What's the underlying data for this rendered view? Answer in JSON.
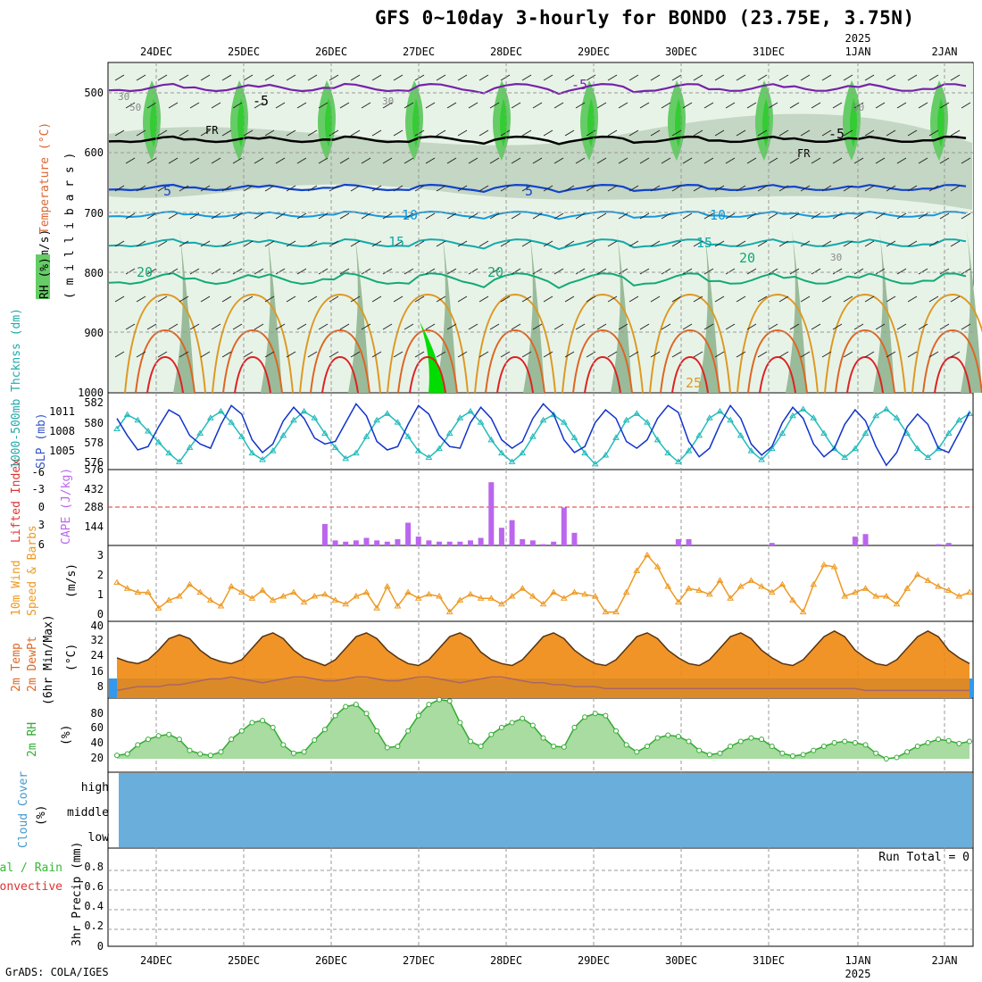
{
  "title": "GFS 0~10day 3-hourly for BONDO (23.75E, 3.75N)",
  "credit": "GrADS: COLA/IGES",
  "colors": {
    "rh": [
      "#e8f3e8",
      "#c4d6c4",
      "#99bb99",
      "#66cc66",
      "#33cc33",
      "#00dd00"
    ],
    "temp_line": [
      "#7722aa",
      "#000000",
      "#1144cc",
      "#1199dd",
      "#11aaaa",
      "#11aa77",
      "#dd9922",
      "#dd6622",
      "#dd2222"
    ],
    "slp": "#1133cc",
    "thickness": "#22bbbb",
    "cape": "#bb66ee",
    "lifted_index": "#dd3333",
    "wind": "#ee9922",
    "rh2m": "#33aa33",
    "cloud": "#6aaedb",
    "cloud_clear": "#f2f0f6"
  },
  "dates": {
    "top": [
      "24DEC",
      "25DEC",
      "26DEC",
      "27DEC",
      "28DEC",
      "29DEC",
      "30DEC",
      "31DEC",
      "1JAN",
      "2JAN"
    ],
    "year_label": "2025",
    "bottom": [
      "24DEC",
      "25DEC",
      "26DEC",
      "27DEC",
      "28DEC",
      "29DEC",
      "30DEC",
      "31DEC",
      "1JAN",
      "2JAN"
    ]
  },
  "panels": {
    "upper_air": {
      "ylabel_wind": "Wind (m/s)",
      "ylabel_temp": "Temperature (°C)",
      "ylabel_rh": "RH (%)",
      "ylabel_unit": "( m i l l i b a r s )",
      "levels": [
        "500",
        "600",
        "700",
        "800",
        "900",
        "1000"
      ],
      "contour_labels": [
        "-5",
        "FR",
        "5",
        "10",
        "15",
        "20",
        "25",
        "30",
        "50"
      ]
    },
    "thickness_slp": {
      "ylabel_left": "1000-500mb Thcknss (dm)",
      "ylabel_right": "SLP (mb)",
      "left_ticks": [
        "582",
        "580",
        "578",
        "576"
      ],
      "right_ticks": [
        "1011",
        "1008",
        "1005"
      ]
    },
    "cape_li": {
      "ylabel_left": "Lifted Index",
      "ylabel_right": "CAPE (J/kg)",
      "left_ticks": [
        "-6",
        "-3",
        "0",
        "3",
        "6"
      ],
      "right_ticks": [
        "576",
        "432",
        "288",
        "144"
      ]
    },
    "wind10m": {
      "ylabel_a": "10m Wind",
      "ylabel_b": "Speed & Barbs",
      "ylabel_c": "(m/s)",
      "ticks": [
        "3",
        "2",
        "1",
        "0"
      ]
    },
    "temp2m": {
      "ylabel_a": "2m Temp",
      "ylabel_b": "2m DewPt",
      "ylabel_c": "(6hr Min/Max)",
      "ylabel_d": "(°C)",
      "ticks": [
        "40",
        "32",
        "24",
        "16",
        "8"
      ]
    },
    "rh2m": {
      "ylabel_a": "2m RH",
      "ylabel_b": "(%)",
      "ticks": [
        "80",
        "60",
        "40",
        "20"
      ]
    },
    "cloud": {
      "ylabel_a": "Cloud Cover",
      "ylabel_b": "(%)",
      "layers": [
        "high",
        "middle",
        "low"
      ]
    },
    "precip": {
      "ylabel_a": "Total / Rain",
      "ylabel_b": "Convective",
      "ylabel_c": "3hr Precip (mm)",
      "ticks": [
        "0.8",
        "0.6",
        "0.4",
        "0.2",
        "0"
      ],
      "run_total": "Run Total = 0"
    }
  },
  "chart_data": {
    "type": "line",
    "x_unit": "3-hourly forecast steps, 23 Dec 2024 to 2 Jan 2025",
    "slp_mb": [
      1009.5,
      1007.5,
      1005.8,
      1006.2,
      1008.5,
      1010.5,
      1009.8,
      1007.5,
      1006.5,
      1006.0,
      1008.8,
      1011.0,
      1010.0,
      1007.0,
      1005.5,
      1006.5,
      1009.2,
      1010.8,
      1009.5,
      1007.2,
      1006.5,
      1006.8,
      1009.0,
      1011.2,
      1009.8,
      1006.8,
      1005.8,
      1006.2,
      1008.8,
      1011.0,
      1010.0,
      1007.5,
      1006.2,
      1006.0,
      1009.0,
      1010.8,
      1009.5,
      1007.0,
      1006.0,
      1006.8,
      1009.5,
      1011.2,
      1010.0,
      1007.0,
      1005.5,
      1006.2,
      1009.0,
      1010.5,
      1009.5,
      1006.8,
      1006.0,
      1007.0,
      1009.5,
      1011.0,
      1010.2,
      1006.8,
      1005.0,
      1006.0,
      1008.8,
      1011.0,
      1009.5,
      1006.5,
      1005.2,
      1006.2,
      1009.0,
      1010.8,
      1009.5,
      1006.5,
      1005.0,
      1006.0,
      1008.8,
      1010.5,
      1009.2,
      1006.2,
      1004.0,
      1005.5,
      1008.5,
      1010.0,
      1008.8,
      1006.0,
      1005.5,
      1007.8,
      1010.2
    ],
    "thickness_dm": [
      579.2,
      580.5,
      580.0,
      579.0,
      578.0,
      577.0,
      576.2,
      577.5,
      578.8,
      580.2,
      580.8,
      579.8,
      578.5,
      577.0,
      576.4,
      577.2,
      578.6,
      580.0,
      580.8,
      580.2,
      578.8,
      577.5,
      576.5,
      577.0,
      578.5,
      580.0,
      580.6,
      579.8,
      578.5,
      577.2,
      576.6,
      577.4,
      578.8,
      580.2,
      580.8,
      579.8,
      578.2,
      577.0,
      576.2,
      577.0,
      578.5,
      580.0,
      580.5,
      579.8,
      578.4,
      577.0,
      576.0,
      576.8,
      578.4,
      580.0,
      580.6,
      579.8,
      578.2,
      577.0,
      576.2,
      577.2,
      578.6,
      580.2,
      580.8,
      580.0,
      578.6,
      577.2,
      576.4,
      577.4,
      578.8,
      580.4,
      581.0,
      580.2,
      578.8,
      577.4,
      576.6,
      577.4,
      578.8,
      580.4,
      581.0,
      580.2,
      578.8,
      577.4,
      576.6,
      577.4,
      578.8,
      580.0,
      580.6
    ],
    "cape_jkg": [
      0,
      0,
      0,
      0,
      0,
      0,
      0,
      0,
      0,
      0,
      0,
      0,
      0,
      0,
      0,
      0,
      0,
      0,
      0,
      0,
      170,
      40,
      30,
      40,
      60,
      40,
      30,
      50,
      180,
      70,
      40,
      30,
      30,
      30,
      40,
      60,
      500,
      140,
      200,
      50,
      40,
      10,
      30,
      300,
      100,
      0,
      0,
      0,
      0,
      0,
      0,
      0,
      0,
      0,
      50,
      50,
      0,
      0,
      0,
      0,
      0,
      0,
      0,
      20,
      0,
      0,
      0,
      0,
      0,
      0,
      0,
      70,
      90,
      0,
      0,
      0,
      0,
      0,
      0,
      10,
      20,
      0,
      0
    ],
    "wind10m_ms": [
      1.7,
      1.4,
      1.2,
      1.2,
      0.4,
      0.8,
      1.0,
      1.6,
      1.2,
      0.8,
      0.5,
      1.5,
      1.2,
      0.9,
      1.3,
      0.8,
      1.0,
      1.2,
      0.7,
      1.0,
      1.1,
      0.8,
      0.6,
      1.0,
      1.2,
      0.4,
      1.5,
      0.5,
      1.2,
      0.9,
      1.1,
      1.0,
      0.2,
      0.8,
      1.1,
      0.9,
      0.9,
      0.6,
      1.0,
      1.4,
      1.0,
      0.6,
      1.2,
      0.9,
      1.2,
      1.1,
      1.0,
      0.2,
      0.2,
      1.2,
      2.3,
      3.1,
      2.5,
      1.5,
      0.7,
      1.4,
      1.3,
      1.1,
      1.8,
      0.9,
      1.5,
      1.8,
      1.5,
      1.2,
      1.6,
      0.8,
      0.2,
      1.6,
      2.6,
      2.5,
      1.0,
      1.2,
      1.4,
      1.0,
      1.0,
      0.6,
      1.4,
      2.1,
      1.8,
      1.5,
      1.3,
      1.0,
      1.2
    ],
    "temp2m_c": [
      25,
      23,
      22,
      24,
      29,
      35,
      37,
      35,
      29,
      25,
      23,
      22,
      24,
      30,
      36,
      38,
      35,
      29,
      25,
      23,
      21,
      24,
      30,
      36,
      38,
      35,
      29,
      25,
      22,
      21,
      24,
      30,
      36,
      38,
      35,
      28,
      24,
      22,
      21,
      24,
      30,
      36,
      38,
      35,
      29,
      25,
      22,
      21,
      24,
      30,
      36,
      38,
      35,
      29,
      25,
      22,
      21,
      24,
      30,
      36,
      38,
      35,
      29,
      25,
      22,
      21,
      24,
      30,
      36,
      39,
      36,
      29,
      25,
      22,
      21,
      24,
      30,
      36,
      39,
      36,
      29,
      25,
      22
    ],
    "dewpt2m_c": [
      8,
      9,
      10,
      10,
      10,
      11,
      11,
      12,
      13,
      14,
      14,
      15,
      14,
      13,
      12,
      13,
      14,
      15,
      15,
      14,
      13,
      13,
      14,
      15,
      15,
      14,
      13,
      13,
      14,
      15,
      15,
      14,
      13,
      12,
      13,
      14,
      15,
      15,
      14,
      13,
      12,
      12,
      11,
      11,
      10,
      10,
      10,
      9,
      9,
      9,
      9,
      9,
      9,
      9,
      9,
      9,
      9,
      9,
      9,
      9,
      9,
      9,
      9,
      9,
      9,
      9,
      9,
      9,
      9,
      9,
      9,
      9,
      8,
      8,
      8,
      8,
      8,
      8,
      8,
      8,
      8,
      8,
      8
    ],
    "rh2m_pct": [
      15,
      17,
      30,
      38,
      43,
      45,
      38,
      22,
      17,
      15,
      20,
      38,
      50,
      62,
      65,
      55,
      30,
      18,
      20,
      37,
      52,
      72,
      85,
      88,
      75,
      50,
      26,
      28,
      50,
      72,
      88,
      95,
      93,
      62,
      35,
      28,
      45,
      55,
      62,
      68,
      58,
      40,
      28,
      27,
      55,
      70,
      75,
      72,
      50,
      30,
      20,
      28,
      40,
      44,
      42,
      35,
      22,
      16,
      18,
      28,
      35,
      40,
      38,
      28,
      18,
      14,
      16,
      22,
      28,
      33,
      35,
      33,
      30,
      18,
      10,
      12,
      20,
      28,
      33,
      38,
      36,
      32,
      35
    ],
    "precip_3hr_mm": [
      0,
      0,
      0,
      0,
      0,
      0,
      0,
      0,
      0,
      0,
      0,
      0,
      0,
      0,
      0,
      0,
      0,
      0,
      0,
      0,
      0,
      0,
      0,
      0,
      0,
      0,
      0,
      0,
      0,
      0,
      0,
      0,
      0,
      0,
      0,
      0,
      0,
      0,
      0,
      0,
      0,
      0,
      0,
      0,
      0,
      0,
      0,
      0,
      0,
      0,
      0,
      0,
      0,
      0,
      0,
      0,
      0,
      0,
      0,
      0,
      0,
      0,
      0,
      0,
      0,
      0,
      0,
      0,
      0,
      0,
      0,
      0,
      0,
      0,
      0,
      0,
      0,
      0,
      0,
      0,
      0,
      0,
      0
    ]
  }
}
